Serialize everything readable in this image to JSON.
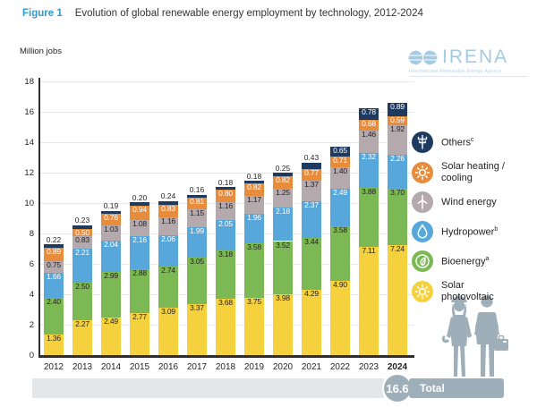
{
  "header": {
    "figure_label": "Figure 1",
    "title": "Evolution of global renewable energy employment by technology, 2012-2024"
  },
  "y_axis": {
    "title": "Million jobs",
    "ticks": [
      0,
      2,
      4,
      6,
      8,
      10,
      12,
      14,
      16,
      18
    ]
  },
  "logo": {
    "name": "IRENA",
    "subtitle": "International Renewable Energy Agency",
    "color": "#A5CAE4"
  },
  "chart_data": {
    "type": "bar",
    "stacked": true,
    "title": "Evolution of global renewable energy employment by technology, 2012-2024",
    "ylabel": "Million jobs",
    "ylim": [
      0,
      18
    ],
    "grid": true,
    "legend_position": "right",
    "categories": [
      "2012",
      "2013",
      "2014",
      "2015",
      "2016",
      "2017",
      "2018",
      "2019",
      "2020",
      "2021",
      "2022",
      "2023",
      "2024"
    ],
    "series": [
      {
        "id": "solar_pv",
        "name": "Solar photovoltaic",
        "color": "#F5D23D",
        "label_color": "#231F20",
        "values": [
          1.36,
          2.27,
          2.49,
          2.77,
          3.09,
          3.37,
          3.68,
          3.75,
          3.98,
          4.29,
          4.9,
          7.11,
          7.24
        ]
      },
      {
        "id": "bioenergy",
        "name": "Bioenergy",
        "color": "#7CB954",
        "label_color": "#231F20",
        "values": [
          2.4,
          2.5,
          2.99,
          2.88,
          2.74,
          3.05,
          3.18,
          3.58,
          3.52,
          3.44,
          3.58,
          3.88,
          3.7
        ]
      },
      {
        "id": "hydropower",
        "name": "Hydropower",
        "color": "#57A7DB",
        "label_color": "#FFFFFF",
        "values": [
          1.66,
          2.21,
          2.04,
          2.16,
          2.06,
          1.99,
          2.05,
          1.96,
          2.18,
          2.37,
          2.49,
          2.32,
          2.26
        ]
      },
      {
        "id": "wind",
        "name": "Wind energy",
        "color": "#B4A9AD",
        "label_color": "#231F20",
        "values": [
          0.75,
          0.83,
          1.03,
          1.08,
          1.16,
          1.15,
          1.16,
          1.17,
          1.25,
          1.37,
          1.4,
          1.46,
          1.92
        ]
      },
      {
        "id": "shc",
        "name": "Solar heating/cooling",
        "color": "#E78C3C",
        "label_color": "#FFFFFF",
        "values": [
          0.89,
          0.5,
          0.76,
          0.94,
          0.83,
          0.81,
          0.8,
          0.82,
          0.82,
          0.77,
          0.71,
          0.68,
          0.59
        ]
      },
      {
        "id": "others",
        "name": "Others",
        "color": "#1E3A5F",
        "label_color": "#FFFFFF",
        "label_outside_below": 0.5,
        "values": [
          0.22,
          0.23,
          0.19,
          0.2,
          0.24,
          0.16,
          0.18,
          0.18,
          0.25,
          0.43,
          0.65,
          0.78,
          0.89
        ]
      }
    ],
    "totals": [
      7.3,
      8.5,
      9.5,
      10.0,
      10.1,
      10.5,
      11.1,
      11.5,
      12.0,
      12.7,
      13.7,
      16.2,
      16.6
    ]
  },
  "totals_row": {
    "label": "Total",
    "highlight_value": "16.6"
  },
  "legend": [
    {
      "id": "others",
      "icon": "pylon-icon",
      "color": "#1E3A5F",
      "lines": [
        "Others"
      ],
      "sup": "c"
    },
    {
      "id": "shc",
      "icon": "sun-icon",
      "color": "#E78C3C",
      "lines": [
        "Solar heating /",
        "cooling"
      ],
      "sup": ""
    },
    {
      "id": "wind",
      "icon": "turbine-icon",
      "color": "#B4A9AD",
      "lines": [
        "Wind energy"
      ],
      "sup": ""
    },
    {
      "id": "hydropower",
      "icon": "droplet-icon",
      "color": "#57A7DB",
      "lines": [
        "Hydropower"
      ],
      "sup": "b"
    },
    {
      "id": "bioenergy",
      "icon": "leaf-icon",
      "color": "#7CB954",
      "lines": [
        "Bioenergy"
      ],
      "sup": "a"
    },
    {
      "id": "solar_pv",
      "icon": "sun-icon",
      "color": "#F5D23D",
      "lines": [
        "Solar",
        "photovoltaic"
      ],
      "sup": ""
    }
  ]
}
